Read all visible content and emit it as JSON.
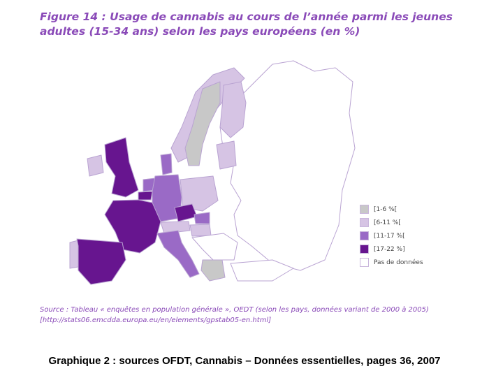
{
  "title": "Figure 14 : Usage de cannabis au cours de l’année parmi les jeunes adultes (15-34 ans) selon les pays européens (en %)",
  "colors": {
    "c1_6": "#c8c8c8",
    "c6_11": "#d6c4e4",
    "c11_17": "#9a6ac6",
    "c17_22": "#67158f",
    "no_data": "#ffffff",
    "border": "#b9a3d2",
    "title": "#8a4ab8"
  },
  "legend": [
    {
      "label": "[1-6 %[",
      "color": "#c8c8c8"
    },
    {
      "label": "[6-11 %[",
      "color": "#d6c4e4"
    },
    {
      "label": "[11-17 %[",
      "color": "#9a6ac6"
    },
    {
      "label": "[17-22 %]",
      "color": "#67158f"
    },
    {
      "label": "Pas de données",
      "color": "#ffffff"
    }
  ],
  "map_classes": {
    "sweden": "[1-6 %[",
    "greece": "[1-6 %[",
    "norway": "[6-11 %[",
    "finland": "[6-11 %[",
    "poland": "[6-11 %[",
    "baltics": "[6-11 %[",
    "ireland": "[6-11 %[",
    "portugal": "[6-11 %[",
    "austria": "[6-11 %[",
    "hungary": "[6-11 %[",
    "germany": "[11-17 %[",
    "italy": "[11-17 %[",
    "denmark": "[11-17 %[",
    "netherlands": "[11-17 %[",
    "slovakia": "[11-17 %[",
    "uk": "[17-22 %]",
    "france": "[17-22 %]",
    "spain": "[17-22 %]",
    "czech": "[17-22 %]",
    "belgium": "[17-22 %]"
  },
  "source": "Source : Tableau « enquêtes en population générale », OEDT (selon les pays, données variant de 2000 à 2005) [http://stats06.emcdda.europa.eu/en/elements/gpstab05-en.html]",
  "caption": "Graphique 2 : sources OFDT, Cannabis – Données essentielles, pages 36, 2007"
}
